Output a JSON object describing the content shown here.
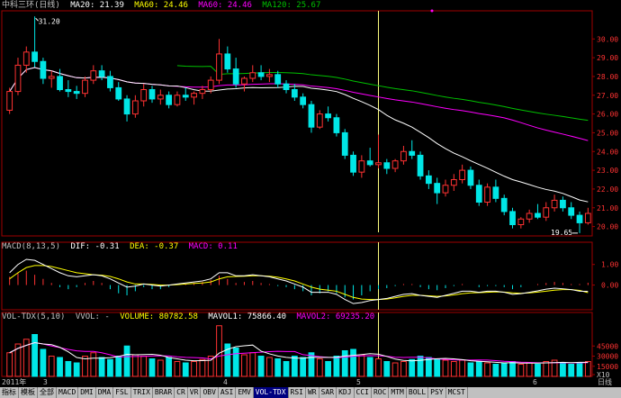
{
  "price_header": {
    "title": "中科三环(日线)",
    "ma20": "MA20: 21.39",
    "ma60": "MA60: 24.46",
    "ma60b": "MA60: 24.46",
    "ma120": "MA120: 25.67"
  },
  "macd_header": {
    "title": "MACD(8,13,5)",
    "dif": "DIF: -0.31",
    "dea": "DEA: -0.37",
    "macd": "MACD: 0.11"
  },
  "vol_header": {
    "title": "VOL-TDX(5,10)",
    "vvol": "VVOL: -",
    "volume": "VOLUME: 80782.58",
    "mavol1": "MAVOL1: 75866.40",
    "mavol2": "MAVOL2: 69235.20"
  },
  "price_axis": [
    "30.00",
    "29.00",
    "28.00",
    "27.00",
    "26.00",
    "25.00",
    "24.00",
    "23.00",
    "22.00",
    "21.00",
    "20.00"
  ],
  "macd_axis": [
    "1.00",
    "0.00"
  ],
  "vol_axis": [
    "45000",
    "30000",
    "15000",
    "X10"
  ],
  "high_label": "31.20",
  "low_label": "19.65",
  "date_labels": [
    "2011年",
    "3",
    "4",
    "5",
    "6"
  ],
  "period_label": "日线",
  "toolbar": [
    "指标",
    "模板",
    "全部",
    "MACD",
    "DMI",
    "DMA",
    "FSL",
    "TRIX",
    "BRAR",
    "CR",
    "VR",
    "OBV",
    "ASI",
    "EMV",
    "VOL-TDX",
    "RSI",
    "WR",
    "SAR",
    "KDJ",
    "CCI",
    "ROC",
    "MTM",
    "BOLL",
    "PSY",
    "MCST"
  ],
  "active_tab": "VOL-TDX",
  "colors": {
    "up": "#ff3232",
    "down": "#00e6e6",
    "ma20": "#ffffff",
    "ma60": "#ff00ff",
    "ma120": "#00c000",
    "dif": "#ffffff",
    "dea": "#ffff00",
    "border": "#a00000"
  },
  "chart_data": {
    "type": "candlestick",
    "candles": [
      [
        26.2,
        27.4,
        26.0,
        27.2
      ],
      [
        27.2,
        29.0,
        27.0,
        28.6
      ],
      [
        28.6,
        29.6,
        28.2,
        29.3
      ],
      [
        29.3,
        31.2,
        28.5,
        28.8
      ],
      [
        28.8,
        29.0,
        27.6,
        27.9
      ],
      [
        27.9,
        28.3,
        27.4,
        28.0
      ],
      [
        28.0,
        28.4,
        27.2,
        27.3
      ],
      [
        27.3,
        27.8,
        26.9,
        27.2
      ],
      [
        27.2,
        27.5,
        26.8,
        27.1
      ],
      [
        27.1,
        28.0,
        26.9,
        27.8
      ],
      [
        27.8,
        28.6,
        27.6,
        28.3
      ],
      [
        28.3,
        28.6,
        27.8,
        28.0
      ],
      [
        28.0,
        28.3,
        27.2,
        27.4
      ],
      [
        27.4,
        27.7,
        26.7,
        26.8
      ],
      [
        26.8,
        27.0,
        25.6,
        26.0
      ],
      [
        26.0,
        27.0,
        25.8,
        26.7
      ],
      [
        26.7,
        27.6,
        26.4,
        27.3
      ],
      [
        27.3,
        27.5,
        26.6,
        26.8
      ],
      [
        26.8,
        27.3,
        26.5,
        27.0
      ],
      [
        27.0,
        27.2,
        26.3,
        26.5
      ],
      [
        26.5,
        27.2,
        26.4,
        27.0
      ],
      [
        27.0,
        27.4,
        26.7,
        26.9
      ],
      [
        26.9,
        27.2,
        26.5,
        27.1
      ],
      [
        27.1,
        27.5,
        26.8,
        27.3
      ],
      [
        27.3,
        28.0,
        27.1,
        27.8
      ],
      [
        27.8,
        30.0,
        27.6,
        29.2
      ],
      [
        29.2,
        29.6,
        28.2,
        28.4
      ],
      [
        28.4,
        29.0,
        27.4,
        27.6
      ],
      [
        27.6,
        28.0,
        27.2,
        27.9
      ],
      [
        27.9,
        28.6,
        27.7,
        28.2
      ],
      [
        28.2,
        28.6,
        27.8,
        28.0
      ],
      [
        28.0,
        28.4,
        27.7,
        28.1
      ],
      [
        28.1,
        28.3,
        27.4,
        27.6
      ],
      [
        27.6,
        27.8,
        27.1,
        27.3
      ],
      [
        27.3,
        27.6,
        26.7,
        26.9
      ],
      [
        26.9,
        27.1,
        26.3,
        26.5
      ],
      [
        26.5,
        26.7,
        25.0,
        25.3
      ],
      [
        25.3,
        26.2,
        25.2,
        26.0
      ],
      [
        26.0,
        26.4,
        25.6,
        25.8
      ],
      [
        25.8,
        26.0,
        24.8,
        25.0
      ],
      [
        25.0,
        25.2,
        23.6,
        23.8
      ],
      [
        23.8,
        24.0,
        22.7,
        22.9
      ],
      [
        22.9,
        23.8,
        22.6,
        23.5
      ],
      [
        23.5,
        24.2,
        23.2,
        23.3
      ],
      [
        23.3,
        24.9,
        23.1,
        23.4
      ],
      [
        23.4,
        23.6,
        22.8,
        23.1
      ],
      [
        23.1,
        23.6,
        22.9,
        23.5
      ],
      [
        23.5,
        24.3,
        23.3,
        24.0
      ],
      [
        24.0,
        24.6,
        23.6,
        23.8
      ],
      [
        23.8,
        24.0,
        22.5,
        22.7
      ],
      [
        22.7,
        23.0,
        22.0,
        22.3
      ],
      [
        22.3,
        22.6,
        21.2,
        21.8
      ],
      [
        21.8,
        22.5,
        21.6,
        22.2
      ],
      [
        22.2,
        22.8,
        21.9,
        22.5
      ],
      [
        22.5,
        23.3,
        22.3,
        23.0
      ],
      [
        23.0,
        23.2,
        22.0,
        22.2
      ],
      [
        22.2,
        22.5,
        21.1,
        21.3
      ],
      [
        21.3,
        22.3,
        21.1,
        22.1
      ],
      [
        22.1,
        22.5,
        21.3,
        21.5
      ],
      [
        21.5,
        21.7,
        20.6,
        20.8
      ],
      [
        20.8,
        21.0,
        19.9,
        20.1
      ],
      [
        20.1,
        20.5,
        19.9,
        20.4
      ],
      [
        20.4,
        20.9,
        20.2,
        20.7
      ],
      [
        20.7,
        21.2,
        20.4,
        20.5
      ],
      [
        20.5,
        21.3,
        20.3,
        21.0
      ],
      [
        21.0,
        21.7,
        20.8,
        21.4
      ],
      [
        21.4,
        21.6,
        20.8,
        21.0
      ],
      [
        21.0,
        21.3,
        20.4,
        20.6
      ],
      [
        20.6,
        20.8,
        19.65,
        20.2
      ],
      [
        20.2,
        21.0,
        20.1,
        20.7
      ]
    ],
    "ylim": [
      19.5,
      31.5
    ],
    "volume": [
      35,
      48,
      55,
      62,
      40,
      30,
      28,
      22,
      20,
      30,
      35,
      28,
      25,
      30,
      45,
      32,
      30,
      26,
      24,
      28,
      22,
      20,
      22,
      25,
      30,
      75,
      48,
      42,
      32,
      35,
      30,
      28,
      26,
      22,
      30,
      28,
      35,
      26,
      22,
      30,
      38,
      40,
      32,
      28,
      26,
      22,
      20,
      22,
      25,
      30,
      28,
      26,
      24,
      22,
      24,
      20,
      22,
      20,
      18,
      20,
      22,
      18,
      20,
      18,
      22,
      24,
      20,
      18,
      20,
      22
    ],
    "vol_ylim": [
      0,
      80
    ],
    "macd_bars": [
      0.4,
      0.6,
      0.7,
      0.5,
      0.3,
      0.1,
      -0.1,
      -0.2,
      -0.1,
      0.1,
      0.2,
      0.1,
      -0.2,
      -0.4,
      -0.5,
      -0.3,
      -0.1,
      -0.2,
      -0.2,
      -0.1,
      0.0,
      0.05,
      0.1,
      0.15,
      0.25,
      0.45,
      0.3,
      0.1,
      0.15,
      0.2,
      0.1,
      0.05,
      -0.05,
      -0.1,
      -0.2,
      -0.3,
      -0.5,
      -0.4,
      -0.3,
      -0.4,
      -0.6,
      -0.7,
      -0.5,
      -0.3,
      -0.2,
      -0.15,
      -0.05,
      0.05,
      0.05,
      -0.1,
      -0.2,
      -0.25,
      -0.15,
      -0.05,
      0.05,
      0.0,
      -0.1,
      -0.05,
      -0.05,
      -0.1,
      -0.2,
      -0.1,
      0.0,
      0.05,
      0.1,
      0.15,
      0.1,
      0.05,
      0.05,
      0.11
    ],
    "dif": [
      0.6,
      1.0,
      1.25,
      1.2,
      1.0,
      0.8,
      0.6,
      0.45,
      0.4,
      0.45,
      0.5,
      0.45,
      0.3,
      0.1,
      -0.1,
      -0.05,
      0.05,
      0.0,
      -0.05,
      0.0,
      0.05,
      0.1,
      0.15,
      0.2,
      0.3,
      0.6,
      0.6,
      0.45,
      0.45,
      0.5,
      0.45,
      0.4,
      0.3,
      0.2,
      0.05,
      -0.1,
      -0.35,
      -0.35,
      -0.35,
      -0.45,
      -0.7,
      -0.9,
      -0.85,
      -0.75,
      -0.7,
      -0.65,
      -0.55,
      -0.45,
      -0.42,
      -0.5,
      -0.55,
      -0.6,
      -0.5,
      -0.4,
      -0.3,
      -0.3,
      -0.35,
      -0.3,
      -0.3,
      -0.35,
      -0.45,
      -0.42,
      -0.35,
      -0.28,
      -0.2,
      -0.15,
      -0.18,
      -0.22,
      -0.3,
      -0.31
    ],
    "dea": [
      0.3,
      0.6,
      0.85,
      0.95,
      0.95,
      0.9,
      0.8,
      0.7,
      0.6,
      0.55,
      0.5,
      0.48,
      0.42,
      0.3,
      0.15,
      0.05,
      0.05,
      0.03,
      0.0,
      0.0,
      0.02,
      0.05,
      0.08,
      0.1,
      0.15,
      0.3,
      0.4,
      0.42,
      0.43,
      0.45,
      0.45,
      0.43,
      0.38,
      0.3,
      0.2,
      0.05,
      -0.1,
      -0.2,
      -0.25,
      -0.3,
      -0.45,
      -0.6,
      -0.68,
      -0.7,
      -0.7,
      -0.68,
      -0.62,
      -0.55,
      -0.5,
      -0.5,
      -0.52,
      -0.55,
      -0.53,
      -0.48,
      -0.42,
      -0.38,
      -0.37,
      -0.35,
      -0.33,
      -0.34,
      -0.38,
      -0.4,
      -0.38,
      -0.34,
      -0.3,
      -0.25,
      -0.22,
      -0.22,
      -0.26,
      -0.37
    ],
    "macd_ylim": [
      -1.2,
      1.6
    ]
  }
}
